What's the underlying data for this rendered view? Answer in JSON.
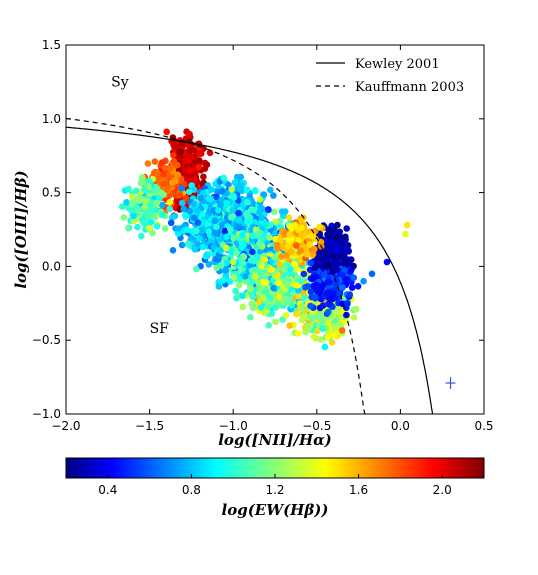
{
  "chart_data": {
    "type": "scatter",
    "xlabel": "log([NII]/Hα)",
    "ylabel": "log([OIII]/Hβ)",
    "xlim": [
      -2.0,
      0.5
    ],
    "ylim": [
      -1.0,
      1.5
    ],
    "xticks": [
      "−2.0",
      "−1.5",
      "−1.0",
      "−0.5",
      "0.0",
      "0.5"
    ],
    "yticks": [
      "−1.0",
      "−0.5",
      "0.0",
      "0.5",
      "1.0",
      "1.5"
    ],
    "region_labels": [
      {
        "text": "Sy",
        "x": -1.73,
        "y": 1.22
      },
      {
        "text": "SF",
        "x": -1.5,
        "y": -0.45
      }
    ],
    "legend": {
      "placement": "top-right",
      "entries": [
        {
          "label": "Kewley 2001",
          "style": "solid"
        },
        {
          "label": "Kauffmann 2003",
          "style": "dashed"
        }
      ]
    },
    "curves": [
      {
        "name": "Kewley 2001",
        "style": "solid",
        "equation": "y = 0.61/(x - 0.47) + 1.19",
        "x_range": [
          -2.0,
          0.18
        ]
      },
      {
        "name": "Kauffmann 2003",
        "style": "dashed",
        "equation": "y = 0.61/(x - 0.05) + 1.30",
        "x_range": [
          -2.0,
          -0.22
        ]
      }
    ],
    "error_bar": {
      "x": 0.3,
      "y": -0.79,
      "xerr": 0.03,
      "yerr": 0.04,
      "color": "#3355ee"
    },
    "colorbar": {
      "label": "log(EW(Hβ))",
      "ticks": [
        "0.4",
        "0.8",
        "1.2",
        "1.6",
        "2.0"
      ],
      "range": [
        0.2,
        2.2
      ],
      "colormap": "jet"
    },
    "clusters": [
      {
        "x": -1.28,
        "y": 0.62,
        "sx": 0.07,
        "sy": 0.18,
        "n": 320,
        "c": 2.05,
        "sc": 0.1
      },
      {
        "x": -1.42,
        "y": 0.55,
        "sx": 0.08,
        "sy": 0.1,
        "n": 160,
        "c": 1.75,
        "sc": 0.12
      },
      {
        "x": -1.52,
        "y": 0.42,
        "sx": 0.08,
        "sy": 0.12,
        "n": 160,
        "c": 1.1,
        "sc": 0.2
      },
      {
        "x": -1.05,
        "y": 0.3,
        "sx": 0.17,
        "sy": 0.18,
        "n": 700,
        "c": 0.85,
        "sc": 0.15
      },
      {
        "x": -0.85,
        "y": 0.1,
        "sx": 0.14,
        "sy": 0.18,
        "n": 500,
        "c": 0.95,
        "sc": 0.25
      },
      {
        "x": -0.72,
        "y": -0.12,
        "sx": 0.14,
        "sy": 0.15,
        "n": 400,
        "c": 1.2,
        "sc": 0.25
      },
      {
        "x": -0.45,
        "y": -0.3,
        "sx": 0.1,
        "sy": 0.12,
        "n": 280,
        "c": 1.35,
        "sc": 0.25
      },
      {
        "x": -0.42,
        "y": -0.1,
        "sx": 0.09,
        "sy": 0.12,
        "n": 220,
        "c": 0.55,
        "sc": 0.12
      },
      {
        "x": -0.4,
        "y": 0.12,
        "sx": 0.07,
        "sy": 0.1,
        "n": 200,
        "c": 0.28,
        "sc": 0.08
      },
      {
        "x": -0.6,
        "y": 0.18,
        "sx": 0.09,
        "sy": 0.09,
        "n": 150,
        "c": 1.55,
        "sc": 0.15
      }
    ],
    "extra_points": [
      {
        "x": 0.04,
        "y": 0.28,
        "c": 1.5
      },
      {
        "x": 0.03,
        "y": 0.22,
        "c": 1.4
      },
      {
        "x": -0.08,
        "y": 0.03,
        "c": 0.45
      },
      {
        "x": -0.17,
        "y": -0.05,
        "c": 0.65
      },
      {
        "x": -0.22,
        "y": -0.1,
        "c": 0.75
      }
    ]
  }
}
